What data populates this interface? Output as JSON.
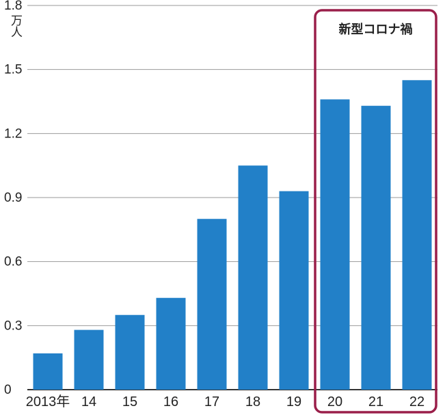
{
  "chart_data": {
    "type": "bar",
    "categories": [
      "2013年",
      "14",
      "15",
      "16",
      "17",
      "18",
      "19",
      "20",
      "21",
      "22"
    ],
    "values": [
      0.17,
      0.28,
      0.35,
      0.43,
      0.8,
      1.05,
      0.93,
      1.36,
      1.33,
      1.45
    ],
    "ylim": [
      0,
      1.8
    ],
    "yticks": [
      "0",
      "0.3",
      "0.6",
      "0.9",
      "1.2",
      "1.5",
      "1.8"
    ],
    "ylabel": "万人",
    "grid": true,
    "bar_color": "#2280c8",
    "highlight": {
      "label": "新型コロナ禍",
      "from_index": 7,
      "to_index": 9,
      "color": "#9a1f4a"
    }
  }
}
